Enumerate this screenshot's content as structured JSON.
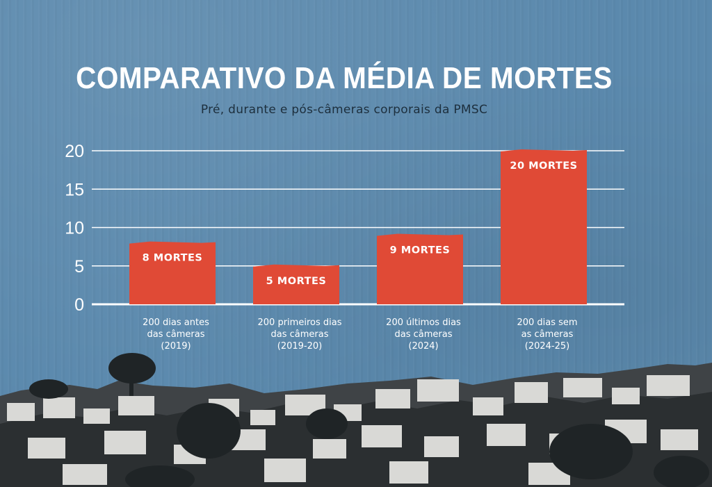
{
  "chart_data": {
    "type": "bar",
    "title": "COMPARATIVO DA MÉDIA DE MORTES",
    "subtitle": "Pré, durante e pós-câmeras corporais da PMSC",
    "categories": [
      [
        "200 dias antes",
        "das câmeras",
        "(2019)"
      ],
      [
        "200 primeiros dias",
        "das câmeras",
        "(2019-20)"
      ],
      [
        "200 últimos dias",
        "das câmeras",
        "(2024)"
      ],
      [
        "200 dias sem",
        "as câmeras",
        "(2024-25)"
      ]
    ],
    "values": [
      8,
      5,
      9,
      20
    ],
    "data_labels": [
      "8 MORTES",
      "5 MORTES",
      "9 MORTES",
      "20 MORTES"
    ],
    "yticks": [
      "0",
      "5",
      "10",
      "15",
      "20"
    ],
    "ylim": [
      0,
      20
    ],
    "grid": true,
    "xlabel": "",
    "ylabel": "",
    "colors": {
      "bar": "#e04a36",
      "background": "#5b89ad",
      "text": "#ffffff",
      "subtitle": "#1d2f3d"
    }
  }
}
